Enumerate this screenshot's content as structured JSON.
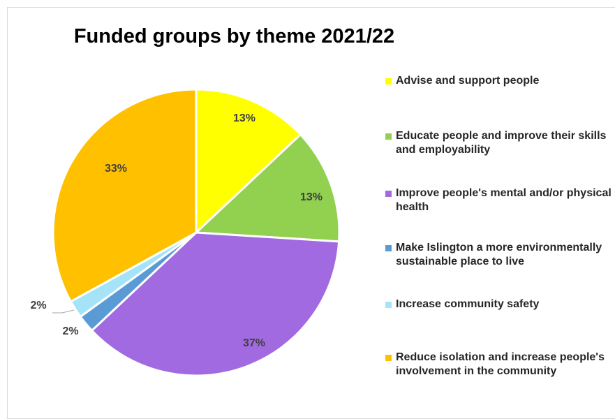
{
  "chart_data": {
    "type": "pie",
    "title": "Funded groups by theme 2021/22",
    "slices": [
      {
        "name": "Advise and support people",
        "value": 13,
        "label": "13%",
        "color": "#ffff00"
      },
      {
        "name": "Educate people and improve their skills and employability",
        "value": 13,
        "label": "13%",
        "color": "#92d050"
      },
      {
        "name": "Improve people's mental and/or physical health",
        "value": 37,
        "label": "37%",
        "color": "#a16ae0"
      },
      {
        "name": "Make Islington a more environmentally sustainable place to live",
        "value": 2,
        "label": "2%",
        "color": "#5b9bd5"
      },
      {
        "name": "Increase community safety",
        "value": 2,
        "label": "2%",
        "color": "#a5e4f8"
      },
      {
        "name": "Reduce isolation and increase people's involvement in the community",
        "value": 33,
        "label": "33%",
        "color": "#ffc000"
      }
    ],
    "legend_position": "right"
  }
}
